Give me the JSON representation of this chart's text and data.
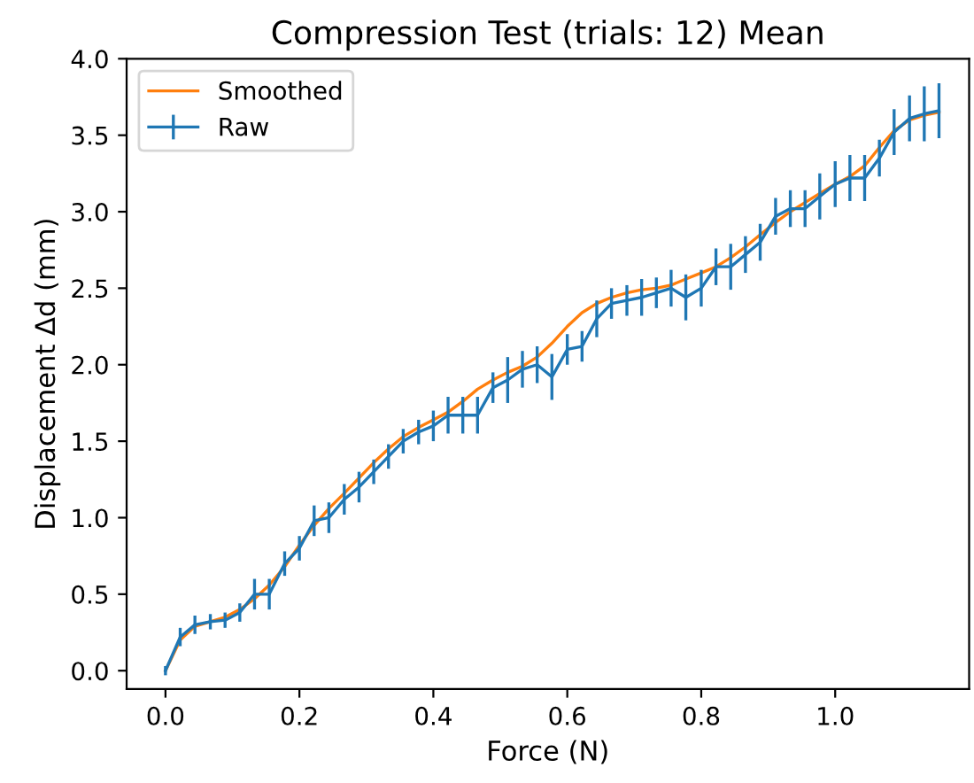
{
  "chart_data": {
    "type": "line",
    "title": "Compression Test (trials: 12) Mean",
    "xlabel": "Force (N)",
    "ylabel": "Displacement Δd (mm)",
    "x": [
      0,
      0.022,
      0.044,
      0.067,
      0.089,
      0.111,
      0.133,
      0.155,
      0.178,
      0.2,
      0.222,
      0.244,
      0.267,
      0.289,
      0.311,
      0.333,
      0.355,
      0.378,
      0.4,
      0.422,
      0.444,
      0.466,
      0.489,
      0.511,
      0.533,
      0.555,
      0.577,
      0.6,
      0.622,
      0.644,
      0.666,
      0.689,
      0.711,
      0.733,
      0.755,
      0.777,
      0.8,
      0.822,
      0.844,
      0.866,
      0.888,
      0.911,
      0.933,
      0.955,
      0.977,
      1.0,
      1.022,
      1.044,
      1.066,
      1.088,
      1.111,
      1.133,
      1.155
    ],
    "series": [
      {
        "name": "Smoothed",
        "color": "#ff7f0e",
        "values": [
          0.0,
          0.2,
          0.29,
          0.32,
          0.35,
          0.4,
          0.47,
          0.56,
          0.68,
          0.82,
          0.95,
          1.06,
          1.16,
          1.26,
          1.36,
          1.45,
          1.53,
          1.59,
          1.64,
          1.69,
          1.76,
          1.84,
          1.9,
          1.95,
          1.99,
          2.05,
          2.14,
          2.25,
          2.34,
          2.4,
          2.44,
          2.47,
          2.49,
          2.5,
          2.52,
          2.56,
          2.6,
          2.64,
          2.7,
          2.77,
          2.85,
          2.93,
          3.0,
          3.06,
          3.12,
          3.18,
          3.23,
          3.3,
          3.42,
          3.53,
          3.6,
          3.63,
          3.65
        ]
      },
      {
        "name": "Raw",
        "color": "#1f77b4",
        "values": [
          0.0,
          0.22,
          0.3,
          0.32,
          0.33,
          0.38,
          0.5,
          0.5,
          0.7,
          0.8,
          0.98,
          1.0,
          1.12,
          1.2,
          1.3,
          1.4,
          1.5,
          1.56,
          1.6,
          1.67,
          1.67,
          1.67,
          1.85,
          1.9,
          1.97,
          2.0,
          1.92,
          2.1,
          2.12,
          2.3,
          2.4,
          2.42,
          2.44,
          2.47,
          2.5,
          2.44,
          2.5,
          2.64,
          2.64,
          2.72,
          2.8,
          2.97,
          3.02,
          3.02,
          3.1,
          3.18,
          3.22,
          3.22,
          3.35,
          3.52,
          3.61,
          3.64,
          3.66
        ],
        "errors": [
          0.03,
          0.06,
          0.06,
          0.05,
          0.05,
          0.06,
          0.1,
          0.1,
          0.08,
          0.08,
          0.1,
          0.1,
          0.1,
          0.1,
          0.08,
          0.08,
          0.08,
          0.08,
          0.1,
          0.12,
          0.12,
          0.12,
          0.1,
          0.15,
          0.12,
          0.12,
          0.15,
          0.1,
          0.1,
          0.12,
          0.1,
          0.1,
          0.12,
          0.1,
          0.12,
          0.15,
          0.12,
          0.12,
          0.15,
          0.12,
          0.12,
          0.12,
          0.12,
          0.12,
          0.15,
          0.15,
          0.15,
          0.15,
          0.12,
          0.15,
          0.15,
          0.18,
          0.18
        ]
      }
    ],
    "xlim": [
      -0.058,
      1.2
    ],
    "ylim": [
      -0.12,
      4.0
    ],
    "xticks": [
      {
        "value": 0,
        "label": "0.0"
      },
      0.2,
      0.4,
      0.6,
      0.8,
      {
        "value": 1,
        "label": "1.0"
      }
    ],
    "yticks": [
      {
        "value": 0,
        "label": "0.0"
      },
      0.5,
      {
        "value": 1,
        "label": "1.0"
      },
      1.5,
      {
        "value": 2,
        "label": "2.0"
      },
      2.5,
      {
        "value": 3,
        "label": "3.0"
      },
      3.5,
      {
        "value": 4,
        "label": "4.0"
      }
    ],
    "legend": "top left",
    "grid": false
  }
}
